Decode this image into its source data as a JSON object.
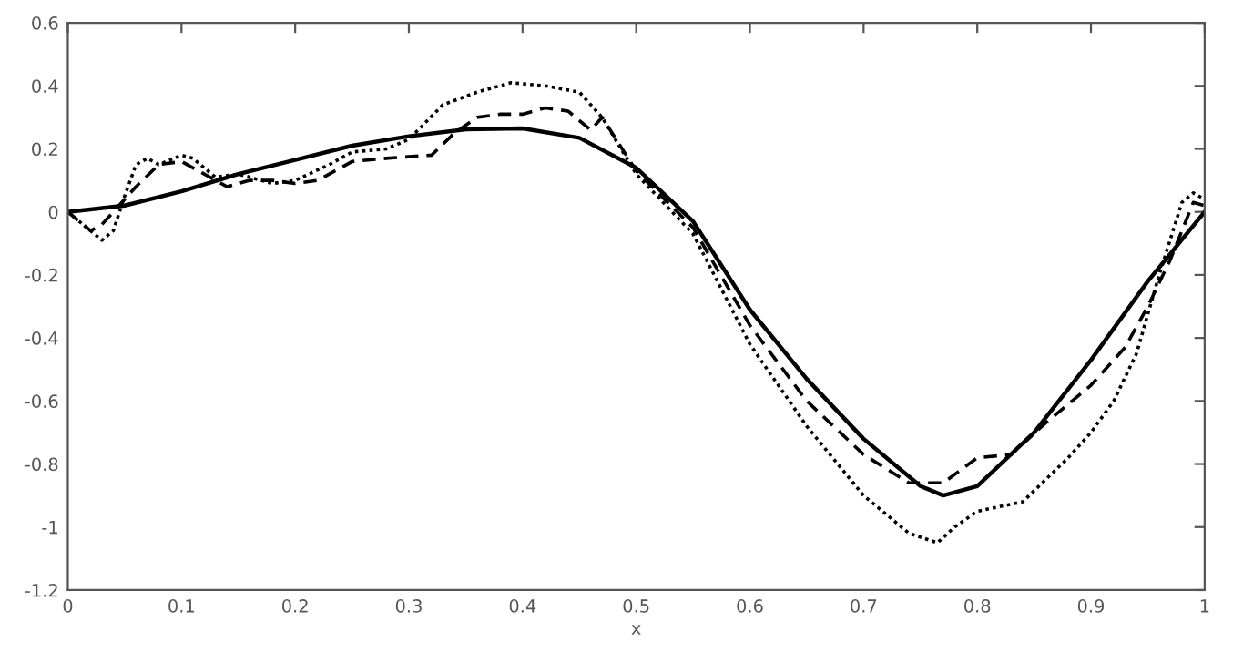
{
  "chart_data": {
    "type": "line",
    "xlabel": "x",
    "xlim": [
      0,
      1
    ],
    "ylim": [
      -1.2,
      0.6
    ],
    "xticks": [
      0,
      0.1,
      0.2,
      0.3,
      0.4,
      0.5,
      0.6,
      0.7,
      0.8,
      0.9,
      1
    ],
    "yticks": [
      -1.2,
      -1,
      -0.8,
      -0.6,
      -0.4,
      -0.2,
      0,
      0.2,
      0.4,
      0.6
    ],
    "grid": false,
    "marker": "none",
    "series": [
      {
        "color": "#000000",
        "line_style": "solid",
        "x": [
          0,
          0.05,
          0.1,
          0.15,
          0.2,
          0.25,
          0.3,
          0.35,
          0.4,
          0.45,
          0.5,
          0.55,
          0.6,
          0.65,
          0.7,
          0.75,
          0.77,
          0.8,
          0.85,
          0.9,
          0.95,
          1
        ],
        "values": [
          0,
          0.02,
          0.065,
          0.12,
          0.165,
          0.21,
          0.24,
          0.262,
          0.265,
          0.235,
          0.14,
          -0.03,
          -0.31,
          -0.53,
          -0.72,
          -0.87,
          -0.9,
          -0.87,
          -0.7,
          -0.47,
          -0.22,
          0
        ]
      },
      {
        "color": "#000000",
        "line_style": "dashed",
        "x": [
          0,
          0.02,
          0.03,
          0.04,
          0.06,
          0.08,
          0.1,
          0.12,
          0.14,
          0.16,
          0.18,
          0.2,
          0.22,
          0.25,
          0.28,
          0.32,
          0.34,
          0.36,
          0.38,
          0.4,
          0.42,
          0.44,
          0.46,
          0.47,
          0.5,
          0.55,
          0.6,
          0.65,
          0.7,
          0.74,
          0.77,
          0.8,
          0.83,
          0.86,
          0.9,
          0.93,
          0.95,
          0.97,
          0.99,
          1
        ],
        "values": [
          0,
          -0.06,
          -0.04,
          0.0,
          0.08,
          0.15,
          0.16,
          0.12,
          0.08,
          0.1,
          0.1,
          0.09,
          0.1,
          0.16,
          0.17,
          0.18,
          0.25,
          0.3,
          0.31,
          0.31,
          0.33,
          0.32,
          0.26,
          0.3,
          0.13,
          -0.05,
          -0.36,
          -0.6,
          -0.77,
          -0.86,
          -0.86,
          -0.78,
          -0.77,
          -0.67,
          -0.55,
          -0.43,
          -0.3,
          -0.15,
          0.03,
          0.02
        ]
      },
      {
        "color": "#000000",
        "line_style": "dotted",
        "x": [
          0,
          0.02,
          0.03,
          0.04,
          0.05,
          0.06,
          0.07,
          0.08,
          0.1,
          0.11,
          0.13,
          0.15,
          0.18,
          0.2,
          0.23,
          0.25,
          0.28,
          0.3,
          0.33,
          0.36,
          0.39,
          0.42,
          0.45,
          0.47,
          0.5,
          0.55,
          0.6,
          0.65,
          0.7,
          0.74,
          0.765,
          0.78,
          0.8,
          0.84,
          0.88,
          0.9,
          0.92,
          0.94,
          0.96,
          0.98,
          0.99,
          1
        ],
        "values": [
          0,
          -0.06,
          -0.09,
          -0.06,
          0.05,
          0.15,
          0.17,
          0.15,
          0.18,
          0.17,
          0.11,
          0.12,
          0.09,
          0.1,
          0.15,
          0.19,
          0.2,
          0.23,
          0.34,
          0.38,
          0.41,
          0.4,
          0.38,
          0.3,
          0.12,
          -0.07,
          -0.42,
          -0.68,
          -0.9,
          -1.02,
          -1.05,
          -1.0,
          -0.95,
          -0.92,
          -0.78,
          -0.7,
          -0.6,
          -0.45,
          -0.2,
          0.03,
          0.06,
          0.04
        ]
      }
    ]
  }
}
